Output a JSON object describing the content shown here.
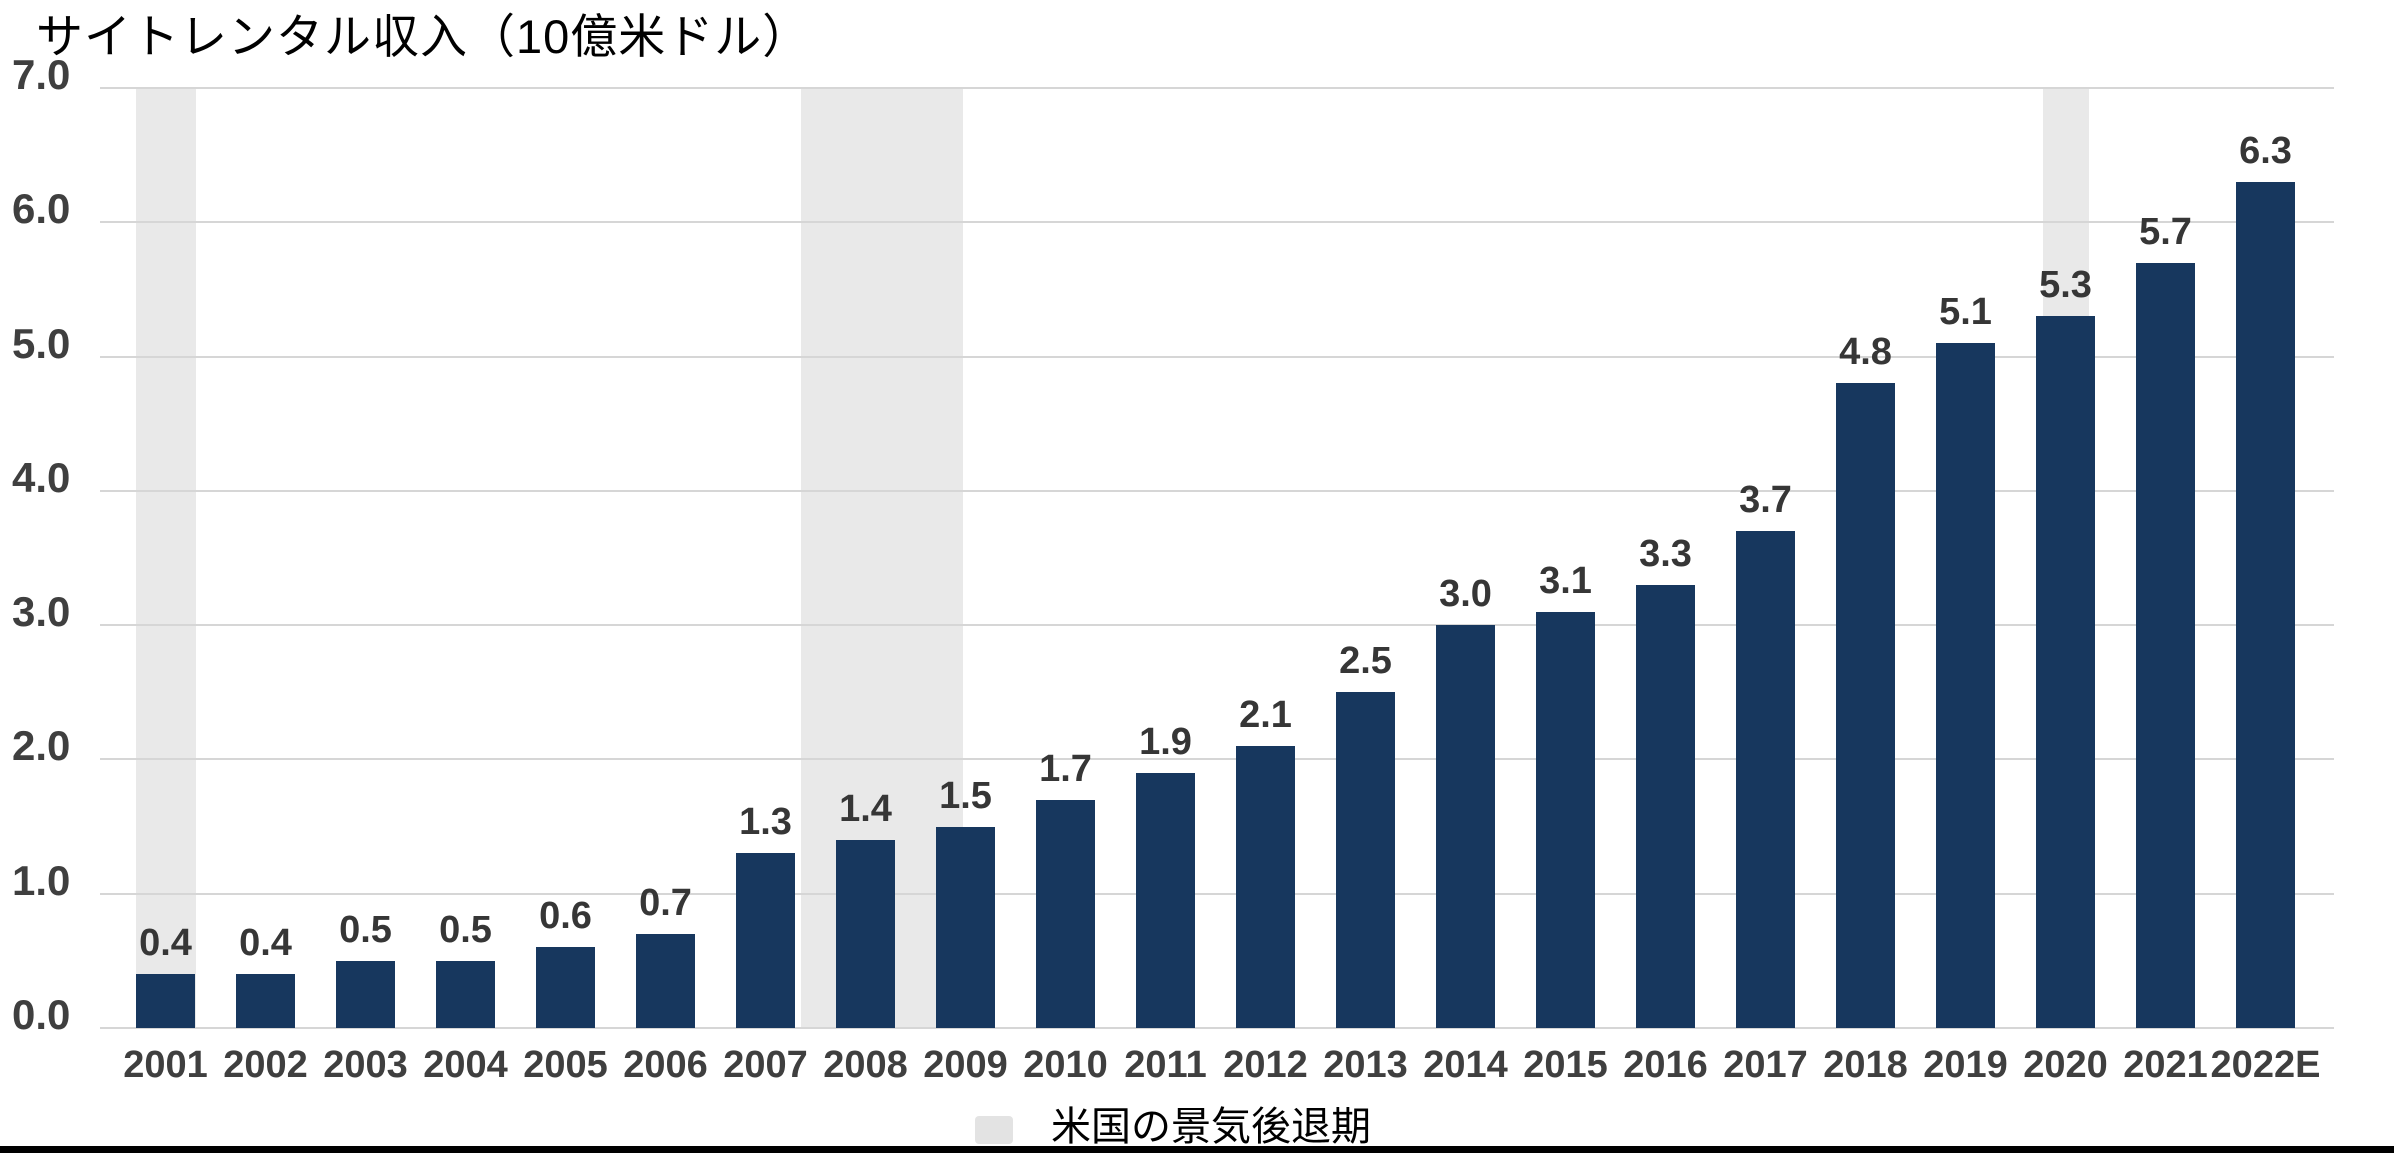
{
  "title": "サイトレンタル収入（10億米ドル）",
  "legend": {
    "label": "米国の景気後退期",
    "swatch_color": "#e3e3e3"
  },
  "colors": {
    "bar": "#17375e",
    "recession_band": "#e9e9e9",
    "gridline": "#d6d6d6",
    "axis_text": "#3f3f3f",
    "value_text": "#363636",
    "title_text": "#000000",
    "bottom_strip": "#000000"
  },
  "chart_data": {
    "type": "bar",
    "title": "サイトレンタル収入（10億米ドル）",
    "categories": [
      "2001",
      "2002",
      "2003",
      "2004",
      "2005",
      "2006",
      "2007",
      "2008",
      "2009",
      "2010",
      "2011",
      "2012",
      "2013",
      "2014",
      "2015",
      "2016",
      "2017",
      "2018",
      "2019",
      "2020",
      "2021",
      "2022E"
    ],
    "values": [
      0.4,
      0.4,
      0.5,
      0.5,
      0.6,
      0.7,
      1.3,
      1.4,
      1.5,
      1.7,
      1.9,
      2.1,
      2.5,
      3.0,
      3.1,
      3.3,
      3.7,
      4.8,
      5.1,
      5.3,
      5.7,
      6.3
    ],
    "value_label_format": "one_decimal",
    "xlabel": "",
    "ylabel": "",
    "ylim": [
      0,
      7
    ],
    "y_ticks": [
      "7.0",
      "6.0",
      "5.0",
      "4.0",
      "3.0",
      "2.0",
      "1.0",
      "0.0"
    ],
    "grid": "horizontal",
    "legend_position": "bottom-center",
    "annotations": {
      "recession_label": "米国の景気後退期",
      "recession_spans_index": [
        [
          -0.3,
          0.3
        ],
        [
          6.35,
          7.97
        ],
        [
          18.77,
          19.23
        ]
      ]
    }
  }
}
